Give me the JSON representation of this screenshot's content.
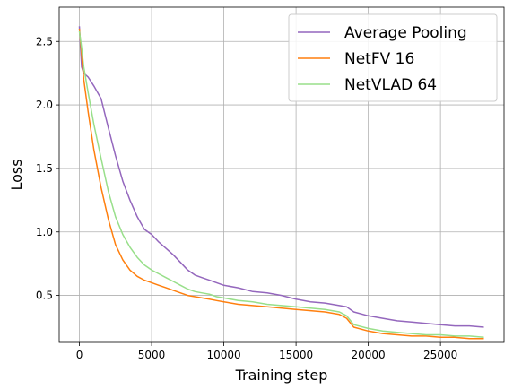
{
  "chart_data": {
    "type": "line",
    "title": "",
    "xlabel": "Training step",
    "ylabel": "Loss",
    "xlim": [
      -1400,
      29400
    ],
    "ylim": [
      0.13,
      2.77
    ],
    "xticks": [
      0,
      5000,
      10000,
      15000,
      20000,
      25000
    ],
    "xtick_labels": [
      "0",
      "5000",
      "10000",
      "15000",
      "20000",
      "25000"
    ],
    "yticks": [
      0.5,
      1.0,
      1.5,
      2.0,
      2.5
    ],
    "ytick_labels": [
      "0.5",
      "1.0",
      "1.5",
      "2.0",
      "2.5"
    ],
    "grid": true,
    "legend_position": "top-right",
    "series": [
      {
        "name": "Average Pooling",
        "color": "#9467bd",
        "x": [
          0,
          150,
          300,
          600,
          1000,
          1500,
          2000,
          2500,
          3000,
          3500,
          4000,
          4500,
          5000,
          5500,
          6000,
          6500,
          7000,
          7500,
          8000,
          8500,
          9000,
          9500,
          10000,
          11000,
          12000,
          13000,
          14000,
          15000,
          16000,
          17000,
          18000,
          18500,
          19000,
          20000,
          21000,
          22000,
          23000,
          24000,
          25000,
          26000,
          27000,
          28000
        ],
        "y": [
          2.62,
          2.3,
          2.25,
          2.22,
          2.15,
          2.05,
          1.82,
          1.6,
          1.4,
          1.25,
          1.12,
          1.02,
          0.98,
          0.92,
          0.87,
          0.82,
          0.76,
          0.7,
          0.66,
          0.64,
          0.62,
          0.6,
          0.58,
          0.56,
          0.53,
          0.52,
          0.5,
          0.47,
          0.45,
          0.44,
          0.42,
          0.41,
          0.37,
          0.34,
          0.32,
          0.3,
          0.29,
          0.28,
          0.27,
          0.26,
          0.26,
          0.25
        ]
      },
      {
        "name": "NetFV 16",
        "color": "#ff7f0e",
        "x": [
          0,
          150,
          300,
          600,
          1000,
          1500,
          2000,
          2500,
          3000,
          3500,
          4000,
          4500,
          5000,
          5500,
          6000,
          6500,
          7000,
          7500,
          8000,
          8500,
          9000,
          9500,
          10000,
          11000,
          12000,
          13000,
          14000,
          15000,
          16000,
          17000,
          18000,
          18500,
          19000,
          20000,
          21000,
          22000,
          23000,
          24000,
          25000,
          26000,
          27000,
          28000
        ],
        "y": [
          2.6,
          2.4,
          2.2,
          1.95,
          1.65,
          1.35,
          1.1,
          0.9,
          0.78,
          0.7,
          0.65,
          0.62,
          0.6,
          0.58,
          0.56,
          0.54,
          0.52,
          0.5,
          0.49,
          0.48,
          0.47,
          0.46,
          0.45,
          0.43,
          0.42,
          0.41,
          0.4,
          0.39,
          0.38,
          0.37,
          0.35,
          0.32,
          0.25,
          0.22,
          0.2,
          0.19,
          0.18,
          0.18,
          0.17,
          0.17,
          0.16,
          0.16
        ]
      },
      {
        "name": "NetVLAD 64",
        "color": "#98df8a",
        "x": [
          0,
          150,
          300,
          600,
          1000,
          1500,
          2000,
          2500,
          3000,
          3500,
          4000,
          4500,
          5000,
          5500,
          6000,
          6500,
          7000,
          7500,
          8000,
          8500,
          9000,
          9500,
          10000,
          11000,
          12000,
          13000,
          14000,
          15000,
          16000,
          17000,
          18000,
          18500,
          19000,
          20000,
          21000,
          22000,
          23000,
          24000,
          25000,
          26000,
          27000,
          28000
        ],
        "y": [
          2.58,
          2.45,
          2.3,
          2.1,
          1.85,
          1.58,
          1.32,
          1.12,
          0.98,
          0.88,
          0.8,
          0.74,
          0.7,
          0.67,
          0.64,
          0.61,
          0.58,
          0.55,
          0.53,
          0.52,
          0.51,
          0.49,
          0.48,
          0.46,
          0.45,
          0.43,
          0.42,
          0.41,
          0.4,
          0.39,
          0.37,
          0.34,
          0.27,
          0.24,
          0.22,
          0.21,
          0.2,
          0.19,
          0.19,
          0.18,
          0.18,
          0.17
        ]
      }
    ]
  }
}
